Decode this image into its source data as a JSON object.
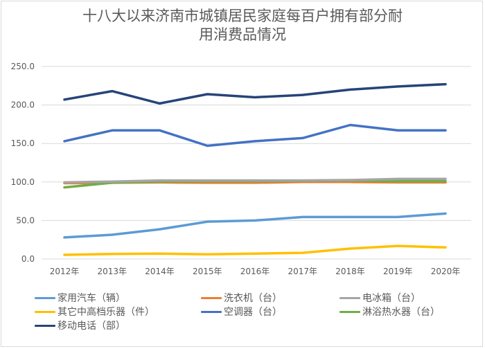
{
  "chart_data": {
    "type": "line",
    "title": "十八大以来济南市城镇居民家庭每百户拥有部分耐用消费品情况",
    "title_lines": [
      "十八大以来济南市城镇居民家庭每百户拥有部分耐",
      "用消费品情况"
    ],
    "xlabel": "",
    "ylabel": "",
    "categories": [
      "2012年",
      "2013年",
      "2014年",
      "2015年",
      "2016年",
      "2017年",
      "2018年",
      "2019年",
      "2020年"
    ],
    "ylim": [
      0,
      250
    ],
    "yticks": [
      "0.0",
      "50.0",
      "100.0",
      "150.0",
      "200.0",
      "250.0"
    ],
    "ytick_values": [
      0,
      50,
      100,
      150,
      200,
      250
    ],
    "grid": true,
    "legend_position": "bottom",
    "series": [
      {
        "name": "家用汽车（辆）",
        "color": "#5b9bd5",
        "values": [
          28.0,
          31.5,
          38.6,
          48.5,
          50.0,
          54.5,
          54.5,
          54.5,
          59.0
        ]
      },
      {
        "name": "洗衣机（台）",
        "color": "#ed7d31",
        "values": [
          98.5,
          99.0,
          99.5,
          99.0,
          99.0,
          100.0,
          100.0,
          99.5,
          99.5
        ]
      },
      {
        "name": "电冰箱（台）",
        "color": "#a5a5a5",
        "values": [
          99.5,
          100.5,
          102.0,
          102.0,
          102.0,
          102.0,
          102.5,
          104.0,
          104.0
        ]
      },
      {
        "name": "其它中高档乐器（件）",
        "color": "#ffc000",
        "values": [
          5.4,
          6.5,
          7.0,
          6.0,
          7.0,
          8.0,
          13.5,
          17.0,
          15.0
        ]
      },
      {
        "name": "空调器（台）",
        "color": "#4472c4",
        "values": [
          153.0,
          167.0,
          167.0,
          147.0,
          153.0,
          157.0,
          174.0,
          167.0,
          167.0
        ]
      },
      {
        "name": "淋浴热水器（台）",
        "color": "#70ad47",
        "values": [
          93.0,
          99.0,
          100.5,
          101.0,
          101.0,
          101.5,
          102.0,
          101.0,
          101.0
        ]
      },
      {
        "name": "移动电话（部）",
        "color": "#264478",
        "values": [
          207.0,
          218.0,
          202.0,
          214.0,
          210.0,
          213.0,
          220.0,
          224.0,
          227.0
        ]
      }
    ]
  }
}
